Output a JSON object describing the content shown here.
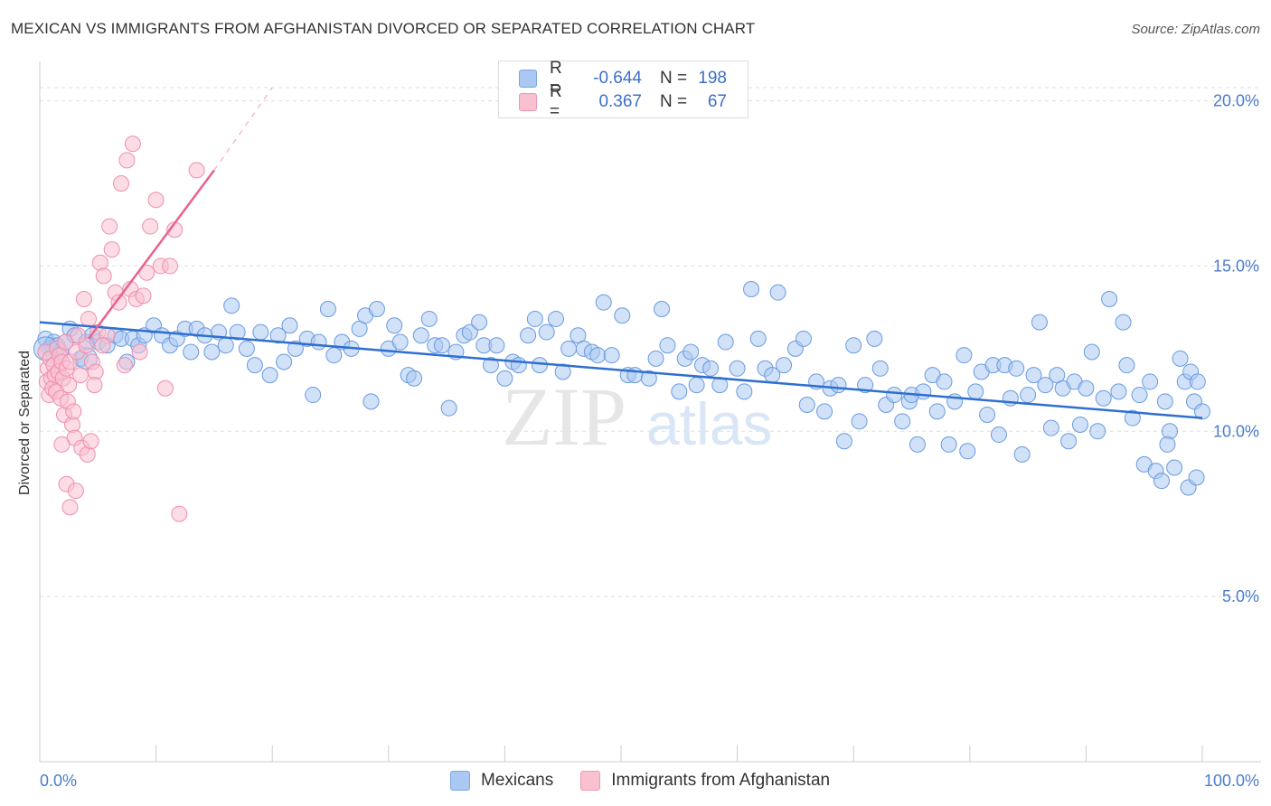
{
  "header": {
    "title": "MEXICAN VS IMMIGRANTS FROM AFGHANISTAN DIVORCED OR SEPARATED CORRELATION CHART",
    "source": "Source: ZipAtlas.com"
  },
  "watermark": {
    "zip": "ZIP",
    "atlas": "atlas"
  },
  "legend": {
    "rows": [
      {
        "r_label": "R =",
        "r_value": "-0.644",
        "n_label": "N =",
        "n_value": "198"
      },
      {
        "r_label": "R =",
        "r_value": "0.367",
        "n_label": "N =",
        "n_value": "67"
      }
    ]
  },
  "colors": {
    "blue": "#6a9be0",
    "blue_fill": "#aac8f2",
    "blue_line": "#2f6fcf",
    "pink": "#ee8fae",
    "pink_fill": "#f9c0d0",
    "pink_line": "#e8628e",
    "axis_text": "#4a7cc9"
  },
  "chart_data": {
    "type": "scatter",
    "title": "MEXICAN VS IMMIGRANTS FROM AFGHANISTAN DIVORCED OR SEPARATED CORRELATION CHART",
    "xlabel": "",
    "ylabel": "Divorced or Separated",
    "xlim": [
      0,
      100
    ],
    "ylim": [
      0,
      21
    ],
    "x_tick_labels": [
      "0.0%",
      "100.0%"
    ],
    "y_ticks": [
      5,
      10,
      15,
      20
    ],
    "y_tick_labels": [
      "5.0%",
      "10.0%",
      "15.0%",
      "20.0%"
    ],
    "legend_position": "top-center",
    "series": [
      {
        "name": "Mexicans",
        "color": "#6a9be0",
        "r": -0.644,
        "n": 198,
        "trend": {
          "x": [
            0,
            100
          ],
          "y": [
            13.3,
            10.4
          ]
        },
        "points": [
          [
            0.5,
            12.8
          ],
          [
            0.8,
            12.5
          ],
          [
            1,
            12.6
          ],
          [
            1.2,
            12.7
          ],
          [
            1.5,
            12.6
          ],
          [
            1.8,
            12.4
          ],
          [
            2.2,
            12.7
          ],
          [
            2.6,
            13.1
          ],
          [
            3,
            12.9
          ],
          [
            3.5,
            12.2
          ],
          [
            4,
            12.7
          ],
          [
            4.5,
            12.9
          ],
          [
            5,
            12.7
          ],
          [
            5.8,
            12.6
          ],
          [
            6.5,
            12.9
          ],
          [
            7,
            12.8
          ],
          [
            7.5,
            12.1
          ],
          [
            8,
            12.8
          ],
          [
            8.5,
            12.6
          ],
          [
            9,
            12.9
          ],
          [
            9.8,
            13.2
          ],
          [
            10.5,
            12.9
          ],
          [
            11.2,
            12.6
          ],
          [
            11.8,
            12.8
          ],
          [
            12.5,
            13.1
          ],
          [
            13,
            12.4
          ],
          [
            13.5,
            13.1
          ],
          [
            14.2,
            12.9
          ],
          [
            14.8,
            12.4
          ],
          [
            15.4,
            13
          ],
          [
            16,
            12.6
          ],
          [
            16.5,
            13.8
          ],
          [
            17,
            13
          ],
          [
            17.8,
            12.5
          ],
          [
            18.5,
            12
          ],
          [
            19,
            13
          ],
          [
            19.8,
            11.7
          ],
          [
            20.5,
            12.9
          ],
          [
            21,
            12.1
          ],
          [
            21.5,
            13.2
          ],
          [
            22,
            12.5
          ],
          [
            23,
            12.8
          ],
          [
            23.5,
            11.1
          ],
          [
            24,
            12.7
          ],
          [
            24.8,
            13.7
          ],
          [
            25.3,
            12.3
          ],
          [
            26,
            12.7
          ],
          [
            26.8,
            12.5
          ],
          [
            27.5,
            13.1
          ],
          [
            28,
            13.5
          ],
          [
            28.5,
            10.9
          ],
          [
            29,
            13.7
          ],
          [
            30,
            12.5
          ],
          [
            30.5,
            13.2
          ],
          [
            31,
            12.7
          ],
          [
            31.7,
            11.7
          ],
          [
            32.2,
            11.6
          ],
          [
            32.8,
            12.9
          ],
          [
            33.5,
            13.4
          ],
          [
            34,
            12.6
          ],
          [
            34.6,
            12.6
          ],
          [
            35.2,
            10.7
          ],
          [
            35.8,
            12.4
          ],
          [
            36.5,
            12.9
          ],
          [
            37,
            13.0
          ],
          [
            37.8,
            13.3
          ],
          [
            38.2,
            12.6
          ],
          [
            38.8,
            12.0
          ],
          [
            39.3,
            12.6
          ],
          [
            40,
            11.6
          ],
          [
            40.7,
            12.1
          ],
          [
            41.2,
            12.0
          ],
          [
            42,
            12.9
          ],
          [
            42.6,
            13.4
          ],
          [
            43,
            12.0
          ],
          [
            43.6,
            13.0
          ],
          [
            44.4,
            13.4
          ],
          [
            45,
            11.8
          ],
          [
            45.5,
            12.5
          ],
          [
            46.3,
            12.9
          ],
          [
            46.8,
            12.5
          ],
          [
            47.5,
            12.4
          ],
          [
            48,
            12.3
          ],
          [
            48.5,
            13.9
          ],
          [
            49.2,
            12.3
          ],
          [
            50.1,
            13.5
          ],
          [
            50.6,
            11.7
          ],
          [
            51.2,
            11.7
          ],
          [
            52.4,
            11.6
          ],
          [
            53,
            12.2
          ],
          [
            53.5,
            13.7
          ],
          [
            54,
            12.6
          ],
          [
            55,
            11.2
          ],
          [
            55.5,
            12.2
          ],
          [
            56,
            12.4
          ],
          [
            56.5,
            11.4
          ],
          [
            57,
            12.0
          ],
          [
            57.7,
            11.9
          ],
          [
            58.5,
            11.4
          ],
          [
            59,
            12.7
          ],
          [
            60,
            11.9
          ],
          [
            60.6,
            11.2
          ],
          [
            61.2,
            14.3
          ],
          [
            61.8,
            12.8
          ],
          [
            62.4,
            11.9
          ],
          [
            63.0,
            11.7
          ],
          [
            63.5,
            14.2
          ],
          [
            64,
            12.0
          ],
          [
            65,
            12.5
          ],
          [
            65.7,
            12.8
          ],
          [
            66,
            10.8
          ],
          [
            66.8,
            11.5
          ],
          [
            67.5,
            10.6
          ],
          [
            68,
            11.3
          ],
          [
            68.7,
            11.4
          ],
          [
            69.2,
            9.7
          ],
          [
            70,
            12.6
          ],
          [
            70.5,
            10.3
          ],
          [
            71,
            11.4
          ],
          [
            71.8,
            12.8
          ],
          [
            72.3,
            11.9
          ],
          [
            72.8,
            10.8
          ],
          [
            73.5,
            11.1
          ],
          [
            74.2,
            10.3
          ],
          [
            74.8,
            10.9
          ],
          [
            75,
            11.1
          ],
          [
            75.5,
            9.6
          ],
          [
            76,
            11.2
          ],
          [
            76.8,
            11.7
          ],
          [
            77.2,
            10.6
          ],
          [
            77.8,
            11.5
          ],
          [
            78.2,
            9.6
          ],
          [
            78.7,
            10.9
          ],
          [
            79.5,
            12.3
          ],
          [
            79.8,
            9.4
          ],
          [
            80.5,
            11.2
          ],
          [
            81,
            11.8
          ],
          [
            81.5,
            10.5
          ],
          [
            82,
            12.0
          ],
          [
            82.5,
            9.9
          ],
          [
            83,
            12.0
          ],
          [
            83.5,
            11.0
          ],
          [
            84,
            11.9
          ],
          [
            84.5,
            9.3
          ],
          [
            85,
            11.1
          ],
          [
            85.5,
            11.7
          ],
          [
            86,
            13.3
          ],
          [
            86.5,
            11.4
          ],
          [
            87,
            10.1
          ],
          [
            87.5,
            11.7
          ],
          [
            88,
            11.3
          ],
          [
            88.5,
            9.7
          ],
          [
            89,
            11.5
          ],
          [
            89.5,
            10.2
          ],
          [
            90,
            11.3
          ],
          [
            90.5,
            12.4
          ],
          [
            91,
            10.0
          ],
          [
            91.5,
            11.0
          ],
          [
            92,
            14.0
          ],
          [
            92.8,
            11.2
          ],
          [
            93.2,
            13.3
          ],
          [
            93.5,
            12.0
          ],
          [
            94,
            10.4
          ],
          [
            94.6,
            11.1
          ],
          [
            95,
            9.0
          ],
          [
            95.5,
            11.5
          ],
          [
            96,
            8.8
          ],
          [
            96.8,
            10.9
          ],
          [
            97.2,
            10.0
          ],
          [
            97.6,
            8.9
          ],
          [
            98.1,
            12.2
          ],
          [
            98.5,
            11.5
          ],
          [
            99,
            11.8
          ],
          [
            99.3,
            10.9
          ],
          [
            99.6,
            11.5
          ],
          [
            100,
            10.6
          ],
          [
            96.5,
            8.5
          ],
          [
            97.0,
            9.6
          ],
          [
            98.8,
            8.3
          ],
          [
            99.5,
            8.6
          ]
        ]
      },
      {
        "name": "Immigrants from Afghanistan",
        "color": "#ee8fae",
        "r": 0.367,
        "n": 67,
        "trend": {
          "x": [
            4.2,
            15
          ],
          "y": [
            12.8,
            17.9
          ]
        },
        "trend_extension": {
          "x": [
            15,
            20
          ],
          "y": [
            17.9,
            20.4
          ]
        },
        "points": [
          [
            0.5,
            12.4
          ],
          [
            0.6,
            11.5
          ],
          [
            0.7,
            11.9
          ],
          [
            0.8,
            11.1
          ],
          [
            0.9,
            12.2
          ],
          [
            1,
            11.6
          ],
          [
            1.1,
            11.3
          ],
          [
            1.2,
            12.0
          ],
          [
            1.3,
            11.7
          ],
          [
            1.4,
            11.2
          ],
          [
            1.5,
            12.5
          ],
          [
            1.6,
            11.8
          ],
          [
            1.7,
            12.3
          ],
          [
            1.8,
            11.0
          ],
          [
            1.9,
            12.1
          ],
          [
            2,
            11.6
          ],
          [
            2.1,
            10.5
          ],
          [
            2.2,
            12.7
          ],
          [
            2.3,
            11.9
          ],
          [
            2.4,
            10.9
          ],
          [
            2.5,
            11.4
          ],
          [
            2.6,
            12.1
          ],
          [
            2.8,
            10.2
          ],
          [
            3,
            9.8
          ],
          [
            3.2,
            12.4
          ],
          [
            3.5,
            11.7
          ],
          [
            3.8,
            14.0
          ],
          [
            4,
            12.6
          ],
          [
            4.2,
            13.4
          ],
          [
            4.5,
            12.1
          ],
          [
            4.8,
            11.8
          ],
          [
            5,
            13.0
          ],
          [
            5.2,
            15.1
          ],
          [
            5.5,
            14.7
          ],
          [
            5.8,
            12.9
          ],
          [
            6,
            16.2
          ],
          [
            6.2,
            15.5
          ],
          [
            6.5,
            14.2
          ],
          [
            6.8,
            13.9
          ],
          [
            7,
            17.5
          ],
          [
            7.3,
            12.0
          ],
          [
            7.5,
            18.2
          ],
          [
            7.8,
            14.3
          ],
          [
            8,
            18.7
          ],
          [
            8.3,
            14.0
          ],
          [
            8.6,
            12.4
          ],
          [
            8.9,
            14.1
          ],
          [
            9.2,
            14.8
          ],
          [
            9.5,
            16.2
          ],
          [
            10,
            17.0
          ],
          [
            10.4,
            15.0
          ],
          [
            10.8,
            11.3
          ],
          [
            11.2,
            15.0
          ],
          [
            11.6,
            16.1
          ],
          [
            12,
            7.5
          ],
          [
            13.5,
            17.9
          ],
          [
            2.3,
            8.4
          ],
          [
            2.6,
            7.7
          ],
          [
            3.1,
            8.2
          ],
          [
            3.6,
            9.5
          ],
          [
            4.1,
            9.3
          ],
          [
            4.4,
            9.7
          ],
          [
            1.9,
            9.6
          ],
          [
            2.9,
            10.6
          ],
          [
            4.7,
            11.4
          ],
          [
            5.4,
            12.6
          ],
          [
            3.3,
            12.9
          ]
        ]
      }
    ]
  }
}
